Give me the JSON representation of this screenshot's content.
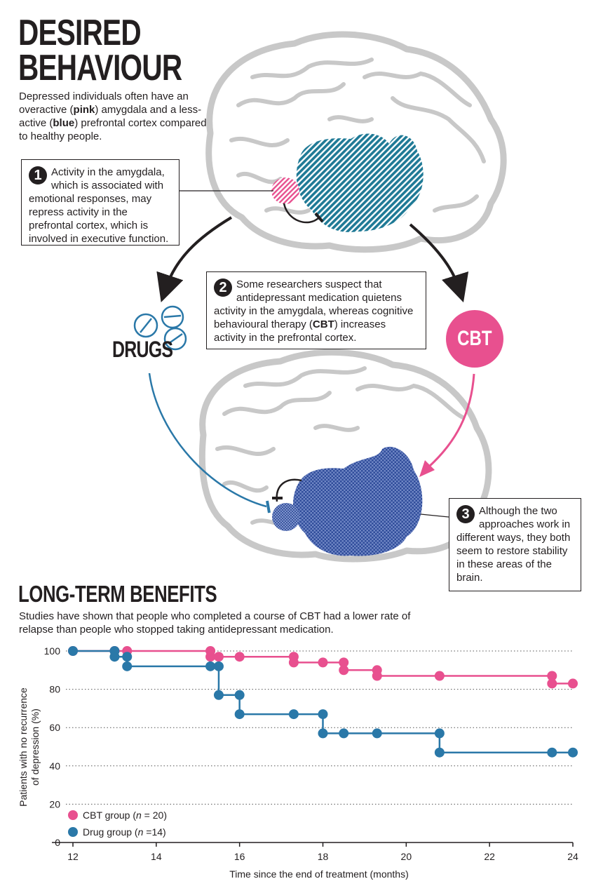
{
  "header": {
    "title_line1": "DESIRED",
    "title_line2": "BEHAVIOUR",
    "intro_pre": "Depressed individuals often have an overactive (",
    "intro_pink": "pink",
    "intro_mid": ") amygdala and a less-active (",
    "intro_blue": "blue",
    "intro_post": ") prefrontal cortex compared to healthy people."
  },
  "callouts": {
    "one": {
      "number": "1",
      "text": "Activity in the amygdala, which is associated with emotional responses, may repress activity in the prefrontal cortex, which is involved in executive function."
    },
    "two": {
      "number": "2",
      "text_pre": "Some researchers suspect that antidepressant medication quietens activity in the amygdala, whereas cognitive behavioural therapy (",
      "text_bold": "CBT",
      "text_post": ") increases activity in the prefrontal cortex."
    },
    "three": {
      "number": "3",
      "text": "Although the two approaches work in different ways, they both seem to restore stability in these areas of the brain."
    }
  },
  "labels": {
    "drugs": "DRUGS",
    "cbt": "CBT"
  },
  "long_term": {
    "title": "LONG-TERM BENEFITS",
    "description": "Studies have shown that people who completed a course of CBT had a lower rate of relapse than people who stopped taking antidepressant medication."
  },
  "colors": {
    "pink": "#e8508f",
    "blue": "#2a78a8",
    "cortex_blue": "#1f7a96",
    "purple_blue": "#3f5fa8",
    "brain_gray": "#c8c8c8",
    "ink": "#231f20"
  },
  "chart_data": {
    "type": "line",
    "step": true,
    "xlabel": "Time since the end of treatment (months)",
    "ylabel_line1": "Patients with no recurrence",
    "ylabel_line2": "of depression (%)",
    "xlim": [
      12,
      24
    ],
    "ylim": [
      0,
      100
    ],
    "xticks": [
      12,
      14,
      16,
      18,
      20,
      22,
      24
    ],
    "yticks": [
      0,
      20,
      40,
      60,
      80,
      100
    ],
    "legend_position": "bottom-left",
    "series": [
      {
        "name": "CBT group",
        "label_pre": "CBT group (",
        "label_n": "n",
        "label_post": " = 20)",
        "color": "#e8508f",
        "x": [
          12,
          13,
          13.3,
          15.3,
          15.3,
          15.5,
          16,
          17.3,
          17.3,
          18,
          18.5,
          18.5,
          19.3,
          19.3,
          20.8,
          23.5,
          23.5,
          24
        ],
        "y": [
          100,
          100,
          100,
          100,
          97,
          97,
          97,
          97,
          94,
          94,
          94,
          90,
          90,
          87,
          87,
          87,
          83,
          83
        ]
      },
      {
        "name": "Drug group",
        "label_pre": "Drug group (",
        "label_n": "n",
        "label_post": " =14)",
        "color": "#2a78a8",
        "x": [
          12,
          13,
          13,
          13.3,
          13.3,
          15.3,
          15.5,
          15.5,
          16,
          16,
          17.3,
          18,
          18,
          18.5,
          19.3,
          20.8,
          20.8,
          23.5,
          24
        ],
        "y": [
          100,
          100,
          97,
          97,
          92,
          92,
          92,
          77,
          77,
          67,
          67,
          67,
          57,
          57,
          57,
          57,
          47,
          47,
          47
        ]
      }
    ]
  }
}
